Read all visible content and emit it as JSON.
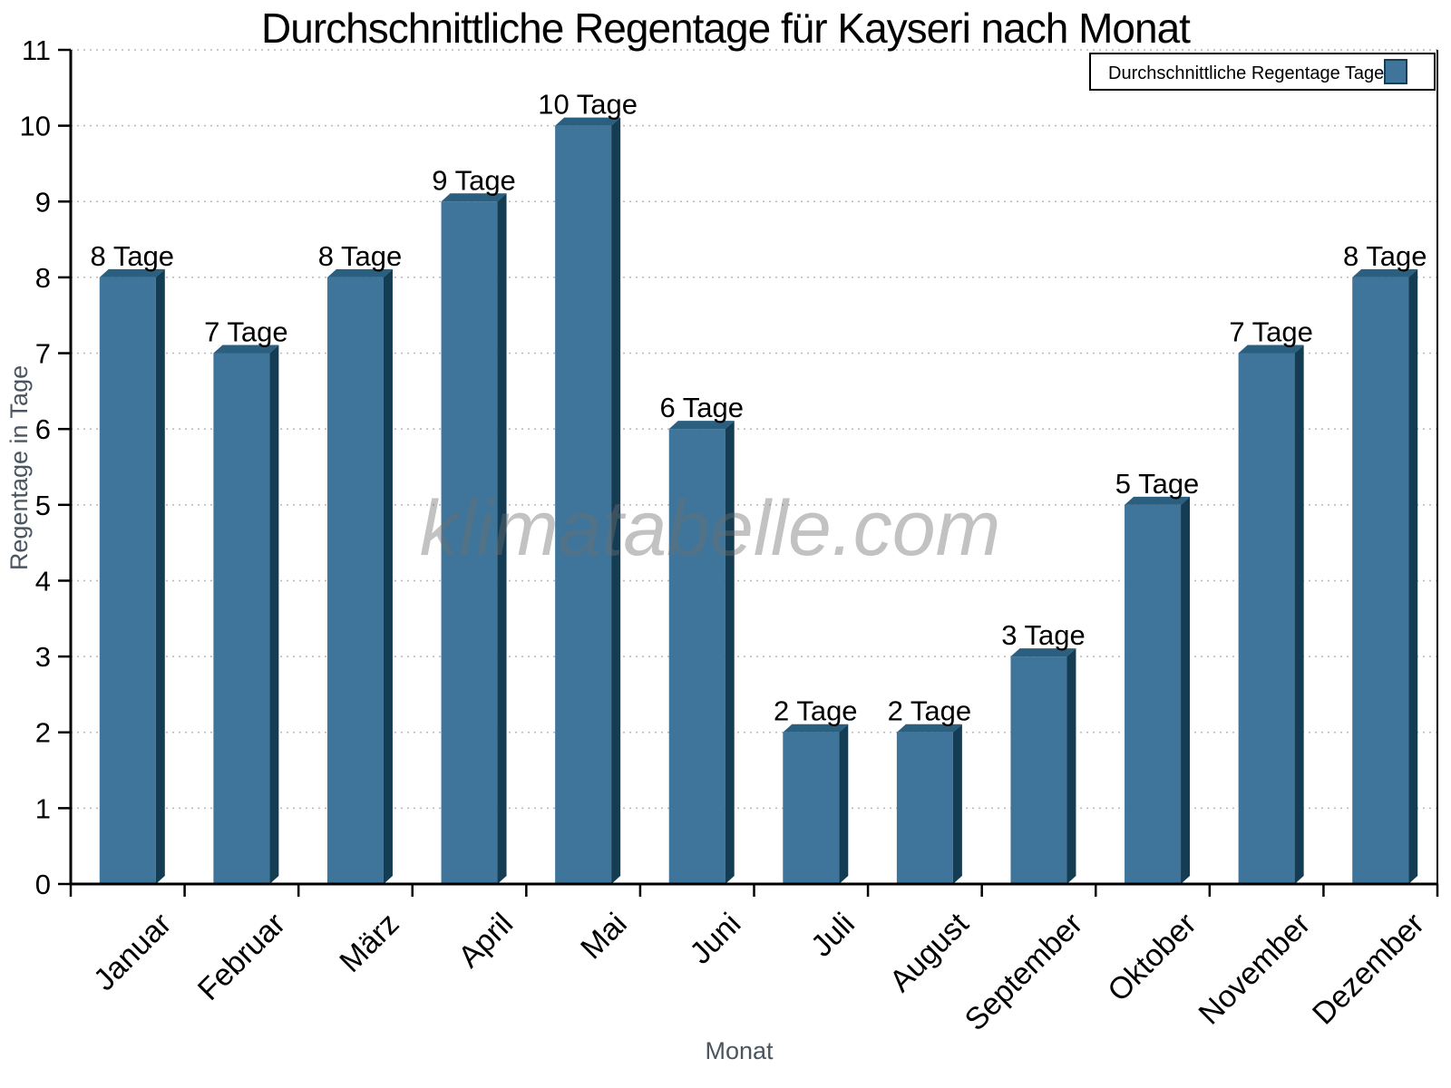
{
  "page": {
    "background": "#FFFFFF"
  },
  "chart_data": {
    "type": "bar",
    "title": "Durchschnittliche Regentage für Kayseri nach Monat",
    "xlabel": "Monat",
    "ylabel": "Regentage in Tage",
    "categories": [
      "Januar",
      "Februar",
      "März",
      "April",
      "Mai",
      "Juni",
      "Juli",
      "August",
      "September",
      "Oktober",
      "November",
      "Dezember"
    ],
    "values": [
      8,
      7,
      8,
      9,
      10,
      6,
      2,
      2,
      3,
      5,
      7,
      8
    ],
    "bar_labels": [
      "8 Tage",
      "7 Tage",
      "8 Tage",
      "9 Tage",
      "10 Tage",
      "6 Tage",
      "2 Tage",
      "2 Tage",
      "3 Tage",
      "5 Tage",
      "7 Tage",
      "8 Tage"
    ],
    "ylim": [
      0,
      11
    ],
    "yticks": [
      0,
      1,
      2,
      3,
      4,
      5,
      6,
      7,
      8,
      9,
      10,
      11
    ],
    "grid": "horizontal-dotted",
    "bar_style": "pseudo-3d",
    "legend": {
      "label": "Durchschnittliche Regentage Tage",
      "position": "top-right"
    }
  },
  "watermark": {
    "text": "klimatabelle.com"
  },
  "colors": {
    "bar_front": "#3F759A",
    "bar_top": "#2B5F80",
    "bar_side": "#143D54",
    "axis_text": "#4A5560",
    "grid_line": "#B8B8B8",
    "watermark_gray": "#6E6E6E"
  }
}
